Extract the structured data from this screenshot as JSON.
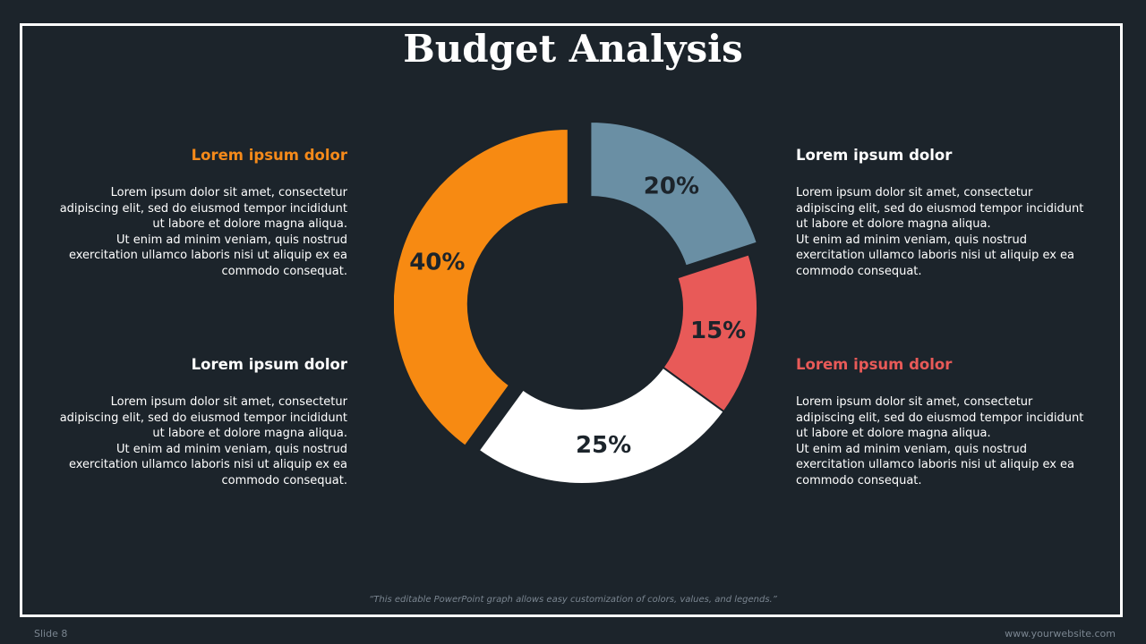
{
  "title": "Budget Analysis",
  "blocks": {
    "top_left": {
      "heading": "Lorem ipsum dolor",
      "heading_color": "#f58a1a",
      "line1": "Lorem ipsum dolor sit amet, consectetur",
      "line2": "adipiscing elit, sed do eiusmod tempor incididunt",
      "line3": "ut labore et dolore magna aliqua.",
      "line4": "Ut enim ad minim veniam, quis nostrud",
      "line5": "exercitation ullamco laboris nisi ut aliquip ex ea",
      "line6": "commodo consequat."
    },
    "bottom_left": {
      "heading": "Lorem ipsum dolor",
      "heading_color": "#ffffff",
      "line1": "Lorem ipsum dolor sit amet, consectetur",
      "line2": "adipiscing elit, sed do eiusmod tempor incididunt",
      "line3": "ut labore et dolore magna aliqua.",
      "line4": "Ut enim ad minim veniam, quis nostrud",
      "line5": "exercitation ullamco laboris nisi ut aliquip ex ea",
      "line6": "commodo consequat."
    },
    "top_right": {
      "heading": "Lorem ipsum dolor",
      "heading_color": "#ffffff",
      "line1": "Lorem ipsum dolor sit amet, consectetur",
      "line2": "adipiscing elit, sed do eiusmod tempor incididunt",
      "line3": "ut labore et dolore magna aliqua.",
      "line4": "Ut enim ad minim veniam, quis nostrud",
      "line5": "exercitation ullamco laboris nisi ut aliquip ex ea",
      "line6": "commodo consequat."
    },
    "bottom_right": {
      "heading": "Lorem ipsum dolor",
      "heading_color": "#e85a58",
      "line1": "Lorem ipsum dolor sit amet, consectetur",
      "line2": "adipiscing elit, sed do eiusmod tempor incididunt",
      "line3": "ut labore et dolore magna aliqua.",
      "line4": "Ut enim ad minim veniam, quis nostrud",
      "line5": "exercitation ullamco laboris nisi ut aliquip ex ea",
      "line6": "commodo consequat."
    }
  },
  "chart_data": {
    "type": "pie",
    "donut": true,
    "slices": [
      {
        "label": "20%",
        "value": 20,
        "color": "#6a8fa4",
        "exploded": true
      },
      {
        "label": "15%",
        "value": 15,
        "color": "#e85a58",
        "exploded": false
      },
      {
        "label": "25%",
        "value": 25,
        "color": "#ffffff",
        "exploded": false
      },
      {
        "label": "40%",
        "value": 40,
        "color": "#f78a12",
        "exploded": true
      }
    ],
    "start": "top, clockwise"
  },
  "footer": {
    "note": "“This editable PowerPoint graph allows easy customization of colors, values, and legends.”",
    "slide": "Slide 8",
    "website": "www.yourwebsite.com"
  }
}
